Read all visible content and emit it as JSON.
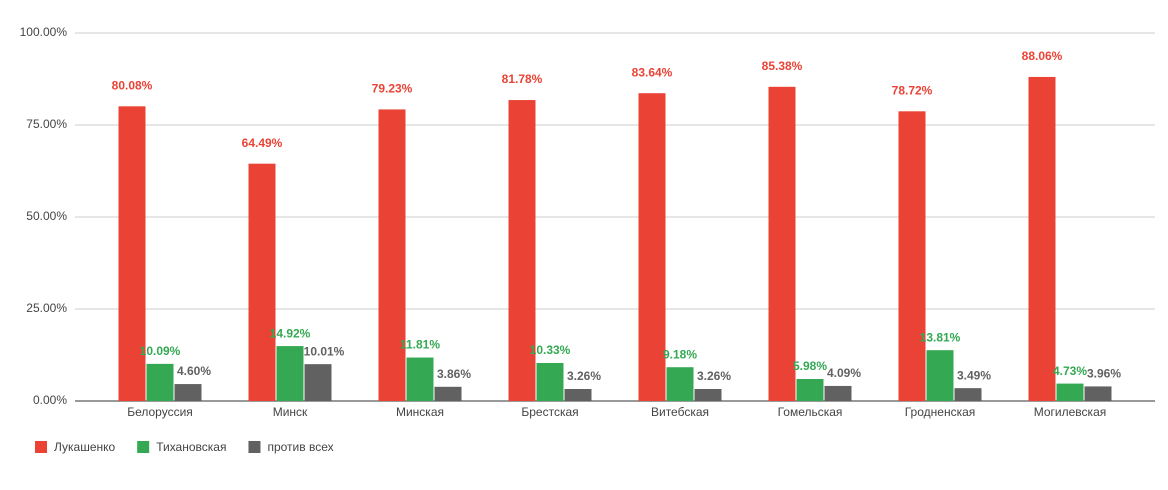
{
  "chart_data": {
    "type": "bar",
    "categories": [
      "Белоруссия",
      "Минск",
      "Минская",
      "Брестская",
      "Витебская",
      "Гомельская",
      "Гродненская",
      "Могилевская"
    ],
    "series": [
      {
        "name": "Лукашенко",
        "color": "#ea4335",
        "values": [
          80.08,
          64.49,
          79.23,
          81.78,
          83.64,
          85.38,
          78.72,
          88.06
        ],
        "value_labels": [
          "80.08%",
          "64.49%",
          "79.23%",
          "81.78%",
          "83.64%",
          "85.38%",
          "78.72%",
          "88.06%"
        ]
      },
      {
        "name": "Тихановская",
        "color": "#34a853",
        "values": [
          10.09,
          14.92,
          11.81,
          10.33,
          9.18,
          5.98,
          13.81,
          4.73
        ],
        "value_labels": [
          "10.09%",
          "14.92%",
          "11.81%",
          "10.33%",
          "9.18%",
          "5.98%",
          "13.81%",
          "4.73%"
        ]
      },
      {
        "name": "против всех",
        "color": "#616161",
        "values": [
          4.6,
          10.01,
          3.86,
          3.26,
          3.26,
          4.09,
          3.49,
          3.96
        ],
        "value_labels": [
          "4.60%",
          "10.01%",
          "3.86%",
          "3.26%",
          "3.26%",
          "4.09%",
          "3.49%",
          "3.96%"
        ]
      }
    ],
    "ylim": [
      0,
      100
    ],
    "yticks": [
      {
        "value": 0,
        "label": "0.00%"
      },
      {
        "value": 25,
        "label": "25.00%"
      },
      {
        "value": 50,
        "label": "50.00%"
      },
      {
        "value": 75,
        "label": "75.00%"
      },
      {
        "value": 100,
        "label": "100.00%"
      }
    ],
    "grid": true,
    "legend": "bottom-left"
  }
}
